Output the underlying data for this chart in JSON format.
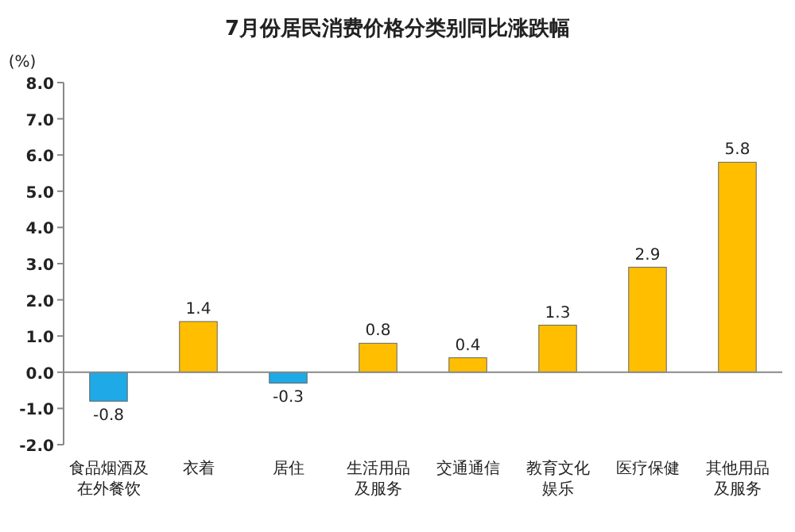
{
  "chart_data": {
    "type": "bar",
    "title": "7月份居民消费价格分类别同比涨跌幅",
    "ylabel": "(%)",
    "categories": [
      "食品烟酒及在外餐饮",
      "衣着",
      "居住",
      "生活用品及服务",
      "交通通信",
      "教育文化娱乐",
      "医疗保健",
      "其他用品及服务"
    ],
    "values": [
      -0.8,
      1.4,
      -0.3,
      0.8,
      0.4,
      1.3,
      2.9,
      5.8
    ],
    "colors": [
      "#1fa9e6",
      "#ffbf00",
      "#1fa9e6",
      "#ffbf00",
      "#ffbf00",
      "#ffbf00",
      "#ffbf00",
      "#ffbf00"
    ],
    "ylim": [
      -2,
      8
    ],
    "yticks": [
      {
        "value": -2,
        "label": "-2.0"
      },
      {
        "value": -1,
        "label": "-1.0"
      },
      {
        "value": 0,
        "label": "0.0"
      },
      {
        "value": 1,
        "label": "1.0"
      },
      {
        "value": 2,
        "label": "2.0"
      },
      {
        "value": 3,
        "label": "3.0"
      },
      {
        "value": 4,
        "label": "4.0"
      },
      {
        "value": 5,
        "label": "5.0"
      },
      {
        "value": 6,
        "label": "6.0"
      },
      {
        "value": 7,
        "label": "7.0"
      },
      {
        "value": 8,
        "label": "8.0"
      }
    ],
    "data_labels": true
  }
}
